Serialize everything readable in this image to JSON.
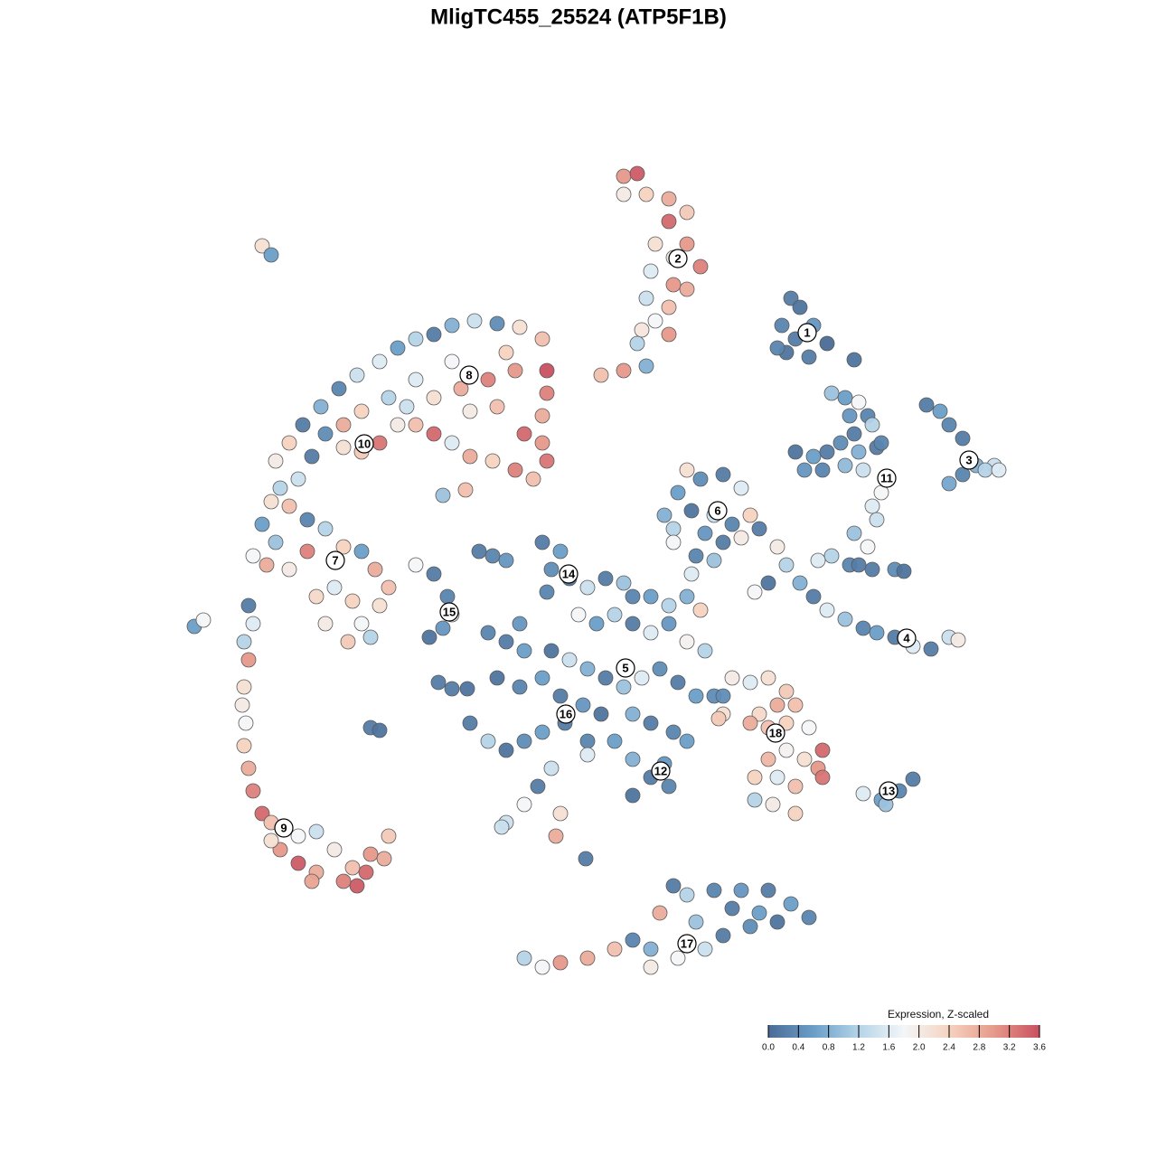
{
  "chart_data": {
    "type": "scatter",
    "title": "MligTC455_25524 (ATP5F1B)",
    "xlim": [
      0,
      100
    ],
    "ylim": [
      0,
      100
    ],
    "color_label": "Expression, Z-scaled",
    "clim": [
      0,
      3.6
    ],
    "colormap": [
      "#4a6b96",
      "#6a9ec8",
      "#b5d4e8",
      "#f3f6f8",
      "#f6d3c0",
      "#e6998a",
      "#c9505f"
    ],
    "cticks": [
      {
        "value": 0,
        "label": "0.0"
      },
      {
        "value": 0.4,
        "label": "0.4"
      },
      {
        "value": 0.8,
        "label": "0.8"
      },
      {
        "value": 1.2,
        "label": "1.2"
      },
      {
        "value": 1.6,
        "label": "1.6"
      },
      {
        "value": 2,
        "label": "2.0"
      },
      {
        "value": 2.4,
        "label": "2.4"
      },
      {
        "value": 2.8,
        "label": "2.8"
      },
      {
        "value": 3.2,
        "label": "3.2"
      },
      {
        "value": 3.6,
        "label": "3.6"
      }
    ],
    "series": [
      {
        "x": [
          68.5,
          69.5,
          67.5,
          69,
          71,
          68,
          70.5,
          72.5,
          67,
          75.5
        ],
        "values": [
          78,
          77,
          75,
          73.5,
          75,
          72,
          71.5,
          73,
          72.5,
          71.2
        ],
        "expression": [
          0.2,
          0.1,
          0.3,
          0.2,
          0.5,
          0.1,
          0.2,
          0.0,
          0.3,
          0.1
        ]
      },
      {
        "x": [
          50,
          51.5,
          50,
          52.5,
          55,
          57,
          55,
          53.5,
          57,
          58.5,
          55.5,
          53,
          55.5,
          52.5,
          55,
          53.5,
          52,
          55,
          51.5,
          52.5,
          50,
          47.5,
          57
        ],
        "values": [
          91.5,
          91.8,
          89.5,
          89.5,
          89,
          87.5,
          86.5,
          84,
          84,
          81.5,
          82.5,
          81,
          79.5,
          78,
          77,
          75.5,
          74.5,
          74,
          73,
          70.5,
          70,
          69.5,
          79
        ],
        "expression": [
          3.0,
          3.5,
          2.0,
          2.4,
          2.8,
          2.5,
          3.4,
          2.2,
          3.0,
          3.2,
          2.0,
          1.6,
          3.0,
          1.4,
          2.6,
          1.8,
          2.1,
          3.0,
          1.2,
          0.8,
          3.0,
          2.6,
          2.8
        ]
      },
      {
        "x": [
          83.5,
          85,
          86,
          87.5,
          89,
          91,
          86,
          87.5,
          90,
          91.5
        ],
        "values": [
          66.2,
          65.5,
          64,
          62.5,
          59.5,
          59.5,
          57.5,
          58.5,
          59,
          59
        ],
        "expression": [
          0.2,
          0.6,
          0.3,
          0.2,
          0.8,
          1.4,
          0.7,
          0.3,
          1.2,
          1.6
        ]
      },
      {
        "x": [
          73,
          74.5,
          76,
          77,
          75,
          75.5,
          77.5,
          74,
          76,
          78,
          69,
          71,
          72.5,
          70,
          72,
          74.5,
          76.5,
          78.5,
          78.5,
          77.5,
          78,
          75.5,
          77,
          73,
          71.5,
          75,
          77.5,
          80,
          81,
          76
        ],
        "values": [
          67.5,
          67,
          66.5,
          65,
          65,
          63,
          64,
          62,
          61,
          61.5,
          61,
          60.5,
          61,
          59,
          59,
          59.5,
          59,
          62,
          56.5,
          55,
          53.5,
          52,
          50.5,
          49.5,
          49,
          48.5,
          48,
          48,
          47.8,
          48.5
        ],
        "expression": [
          1.0,
          0.6,
          1.8,
          0.3,
          0.5,
          0.2,
          1.2,
          0.4,
          0.8,
          0.2,
          0.1,
          0.6,
          0.2,
          0.5,
          0.3,
          0.9,
          1.4,
          0.3,
          1.8,
          1.6,
          1.4,
          1.0,
          1.8,
          1.2,
          1.6,
          0.3,
          0.2,
          0.4,
          0.1,
          0.2
        ]
      },
      {
        "x": [
          67,
          68,
          69.5,
          71,
          72.5,
          74.5,
          76.5,
          78,
          80,
          82,
          84,
          86,
          87,
          66,
          64.5
        ],
        "values": [
          50.5,
          48.5,
          46.5,
          45,
          43.5,
          42.5,
          41.5,
          41,
          40.5,
          39.5,
          39.2,
          40.5,
          40.2,
          46.5,
          45.5
        ],
        "expression": [
          2.0,
          1.2,
          0.8,
          0.2,
          1.6,
          1.0,
          0.3,
          0.6,
          0.2,
          1.6,
          0.2,
          1.4,
          2.0,
          0.1,
          1.8
        ]
      },
      {
        "x": [
          57,
          58.5,
          61,
          63,
          56,
          57.5,
          60,
          62,
          64,
          55.5,
          59,
          61,
          63,
          58,
          60,
          57.5,
          55.5,
          54.5,
          65
        ],
        "values": [
          59,
          58,
          58.5,
          57,
          56.5,
          54.5,
          54,
          53,
          54,
          52.5,
          52,
          51,
          51.5,
          49.5,
          49,
          47.5,
          51,
          54,
          52.5
        ],
        "expression": [
          2.2,
          0.4,
          0.2,
          1.6,
          0.6,
          0.1,
          1.4,
          0.3,
          2.4,
          1.2,
          0.5,
          0.2,
          2.0,
          0.3,
          1.0,
          1.6,
          1.8,
          0.8,
          0.2
        ]
      },
      {
        "x": [
          41,
          43,
          35.5,
          37,
          34,
          42,
          44,
          41.5,
          46,
          48,
          50,
          51,
          53,
          55,
          57,
          58.5,
          45,
          47,
          49,
          51,
          53,
          55,
          57,
          59,
          37,
          39,
          42,
          44,
          46,
          48,
          50,
          52,
          54,
          56,
          58,
          36,
          38.5,
          41,
          43,
          45.5,
          47.5,
          51,
          53,
          55.5,
          57,
          33,
          35,
          37,
          39,
          41,
          43.5,
          46,
          49,
          51,
          53,
          55,
          51,
          54.5,
          42,
          40.5,
          39,
          37,
          43,
          46,
          60,
          61,
          35,
          38.5
        ],
        "values": [
          51,
          50,
          49.5,
          49,
          50,
          48,
          47,
          45.5,
          46,
          47,
          46.5,
          45,
          45,
          44,
          45,
          43.5,
          43,
          42,
          43,
          42,
          41,
          42,
          40,
          39,
          40,
          39,
          39,
          38,
          37,
          36,
          35,
          36,
          37,
          35.5,
          34,
          36,
          35,
          36,
          34,
          33,
          32,
          32,
          31,
          30,
          29,
          31,
          29,
          28,
          29,
          30,
          31,
          29,
          29,
          27,
          25,
          24,
          23,
          26.5,
          26,
          24,
          22,
          20,
          21,
          27.5,
          34,
          32,
          41,
          42
        ],
        "expression": [
          0.2,
          0.6,
          0.3,
          0.5,
          0.2,
          0.4,
          0.1,
          0.3,
          1.4,
          0.2,
          1.0,
          0.3,
          0.6,
          1.2,
          0.8,
          2.4,
          1.8,
          0.6,
          1.2,
          0.2,
          1.6,
          0.5,
          1.9,
          1.2,
          0.2,
          0.6,
          0.1,
          1.4,
          0.8,
          0.2,
          1.0,
          1.6,
          0.4,
          0.2,
          0.6,
          0.1,
          0.3,
          0.6,
          0.2,
          0.5,
          0.1,
          0.8,
          0.2,
          0.3,
          0.6,
          0.2,
          1.2,
          0.1,
          0.4,
          0.6,
          0.2,
          0.3,
          0.6,
          0.8,
          0.2,
          0.3,
          0.1,
          0.5,
          1.4,
          0.2,
          1.8,
          1.4,
          2.2,
          1.6,
          0.4,
          2.2,
          0.3,
          0.5
        ]
      },
      {
        "x": [
          27,
          29,
          30.5,
          31,
          30,
          28.5,
          29.5,
          31,
          32.7,
          22,
          23
        ],
        "values": [
          48.5,
          47.5,
          45,
          43,
          41.5,
          40.5,
          35.5,
          34.8,
          34.8,
          30.5,
          30.2
        ],
        "expression": [
          1.8,
          0.2,
          0.3,
          1.6,
          0.5,
          0.1,
          0.2,
          0.2,
          0.1,
          0.2,
          0.1
        ]
      },
      {
        "x": [
          62,
          64,
          66,
          68,
          69,
          67,
          65,
          66,
          68,
          70.5,
          72,
          71.5,
          70,
          68,
          66,
          64.5,
          67,
          69,
          64.5,
          66.5,
          69,
          61,
          60.5,
          64,
          72
        ],
        "values": [
          36,
          35.5,
          36,
          34.5,
          33,
          33,
          32,
          30.5,
          31,
          30.5,
          28,
          26,
          27,
          28,
          27,
          25,
          25,
          24,
          22.5,
          22,
          21,
          34,
          31.5,
          31,
          25
        ],
        "expression": [
          2.0,
          1.6,
          2.2,
          2.5,
          2.6,
          2.8,
          2.3,
          2.6,
          2.4,
          1.8,
          3.4,
          3.0,
          2.2,
          1.9,
          2.7,
          2.4,
          1.6,
          2.6,
          1.2,
          2.0,
          2.4,
          0.4,
          2.5,
          2.8,
          3.3
        ]
      },
      {
        "x": [
          76.5,
          78.5,
          80.5,
          82,
          79
        ],
        "values": [
          23.2,
          22.5,
          23.5,
          24.8,
          22
        ],
        "expression": [
          1.6,
          0.6,
          0.3,
          0.2,
          1.0
        ]
      },
      {
        "x": [
          55.5,
          57,
          60,
          63,
          66,
          68.5,
          70.5,
          67,
          64,
          61,
          59,
          56,
          53,
          54,
          51,
          49,
          46,
          43,
          41,
          39,
          53,
          65,
          62,
          58,
          42.5,
          45.8,
          36.5
        ],
        "values": [
          13,
          12,
          12.5,
          12.5,
          12.5,
          11,
          9.5,
          9,
          8.5,
          7.5,
          6,
          5,
          6,
          10,
          7,
          6,
          5,
          4.5,
          4,
          5,
          4,
          10,
          10.5,
          9,
          18.5,
          16,
          19.5
        ],
        "expression": [
          0.2,
          1.2,
          0.3,
          0.5,
          0.2,
          0.6,
          0.3,
          0.1,
          0.4,
          0.2,
          1.4,
          1.8,
          0.8,
          2.8,
          0.3,
          2.6,
          2.8,
          3.0,
          1.8,
          1.2,
          2.0,
          0.6,
          0.2,
          1.0,
          2.8,
          0.2,
          1.4
        ]
      },
      {
        "x": [
          8.5,
          9,
          8,
          8.5,
          8,
          7.8,
          8.2,
          8,
          8.5,
          9,
          10,
          11,
          12.5,
          14,
          16,
          12,
          14,
          16,
          18,
          20,
          20.5,
          19,
          22,
          24,
          23.5,
          11,
          15.5,
          21.5
        ],
        "values": [
          44,
          42,
          40,
          38,
          35,
          33,
          31,
          28.5,
          26,
          23.5,
          21,
          20,
          19.5,
          18.5,
          19,
          17,
          15.5,
          14.5,
          17,
          15,
          13,
          13.5,
          16.5,
          18.5,
          16,
          18,
          13.5,
          14.5
        ],
        "expression": [
          0.2,
          1.6,
          1.2,
          3.0,
          2.2,
          2.0,
          1.8,
          2.4,
          2.8,
          3.2,
          3.4,
          2.6,
          2.2,
          1.8,
          1.4,
          3.0,
          3.5,
          2.8,
          2.0,
          2.6,
          3.5,
          3.2,
          3.0,
          2.5,
          2.8,
          2.2,
          2.9,
          3.4
        ]
      },
      {
        "x": [
          9,
          10.5,
          11.5,
          10,
          11,
          12,
          11.5,
          13,
          14.5,
          16.5,
          18.5,
          20.5,
          23,
          25,
          27,
          29,
          31,
          33.5,
          36,
          38.5,
          41,
          41.5,
          41.5,
          41,
          41,
          41.5,
          40,
          38,
          35.5,
          33,
          31,
          29,
          27,
          25,
          23,
          21,
          19,
          17,
          15.5,
          14,
          13,
          15,
          17,
          19,
          21,
          22.5,
          24,
          23,
          21,
          19.5,
          17,
          16,
          18,
          20,
          22,
          26,
          29,
          32,
          35,
          38,
          33,
          36,
          39,
          27,
          24,
          21,
          19,
          37,
          31,
          15,
          13
        ],
        "values": [
          49.5,
          48.5,
          51,
          53,
          55.5,
          57,
          60,
          62,
          64,
          66,
          68,
          69.5,
          71,
          72.5,
          73.5,
          74,
          75,
          75.5,
          75.2,
          74.8,
          73.5,
          70,
          67.5,
          65,
          62,
          60,
          58,
          59,
          60,
          60.5,
          62,
          63,
          64,
          64,
          62,
          61,
          61.5,
          63,
          60.5,
          58,
          55,
          53.5,
          52.5,
          50.5,
          50,
          48,
          46,
          44,
          42,
          40,
          42,
          45,
          46,
          44.5,
          40.5,
          66,
          67,
          68,
          69,
          70,
          65.5,
          66,
          63,
          69,
          67,
          65.5,
          64,
          72,
          71,
          50,
          48
        ],
        "expression": [
          1.8,
          2.8,
          1.0,
          0.6,
          2.2,
          1.2,
          2.0,
          2.4,
          0.2,
          0.8,
          0.3,
          1.4,
          1.6,
          0.6,
          1.2,
          0.2,
          0.8,
          1.4,
          0.4,
          2.2,
          2.6,
          3.6,
          3.2,
          2.8,
          3.0,
          3.3,
          2.6,
          3.2,
          2.4,
          2.8,
          1.6,
          3.4,
          2.6,
          2.0,
          3.3,
          2.5,
          2.2,
          0.4,
          0.2,
          1.4,
          2.6,
          0.3,
          1.2,
          2.4,
          0.6,
          2.8,
          2.6,
          2.2,
          1.8,
          2.5,
          2.0,
          2.3,
          1.6,
          2.4,
          1.2,
          1.4,
          2.2,
          2.8,
          3.2,
          3.0,
          2.0,
          2.6,
          3.4,
          1.6,
          1.2,
          2.4,
          2.8,
          2.4,
          1.8,
          3.2,
          2.0
        ]
      },
      {
        "x": [
          10,
          11,
          2.5,
          3.5,
          30,
          32.5
        ],
        "values": [
          83.8,
          82.8,
          41.7,
          42.4,
          56.2,
          56.8
        ],
        "expression": [
          2.2,
          0.6,
          0.6,
          1.8,
          1.0,
          2.6
        ]
      }
    ],
    "cluster_labels": [
      {
        "label": "1",
        "x": 70.3,
        "y": 74.2
      },
      {
        "label": "2",
        "x": 56,
        "y": 82.4
      },
      {
        "label": "3",
        "x": 88.2,
        "y": 60.1
      },
      {
        "label": "4",
        "x": 81.3,
        "y": 40.4
      },
      {
        "label": "5",
        "x": 50.2,
        "y": 37.1
      },
      {
        "label": "6",
        "x": 60.4,
        "y": 54.5
      },
      {
        "label": "7",
        "x": 18.1,
        "y": 49
      },
      {
        "label": "8",
        "x": 32.9,
        "y": 69.5
      },
      {
        "label": "9",
        "x": 12.4,
        "y": 19.4
      },
      {
        "label": "10",
        "x": 21.3,
        "y": 61.9
      },
      {
        "label": "11",
        "x": 79.1,
        "y": 58.1
      },
      {
        "label": "12",
        "x": 54.1,
        "y": 25.7
      },
      {
        "label": "13",
        "x": 79.3,
        "y": 23.5
      },
      {
        "label": "14",
        "x": 43.9,
        "y": 47.5
      },
      {
        "label": "15",
        "x": 30.7,
        "y": 43.3
      },
      {
        "label": "16",
        "x": 43.6,
        "y": 32
      },
      {
        "label": "17",
        "x": 57,
        "y": 6.6
      },
      {
        "label": "18",
        "x": 66.8,
        "y": 29.9
      }
    ]
  }
}
